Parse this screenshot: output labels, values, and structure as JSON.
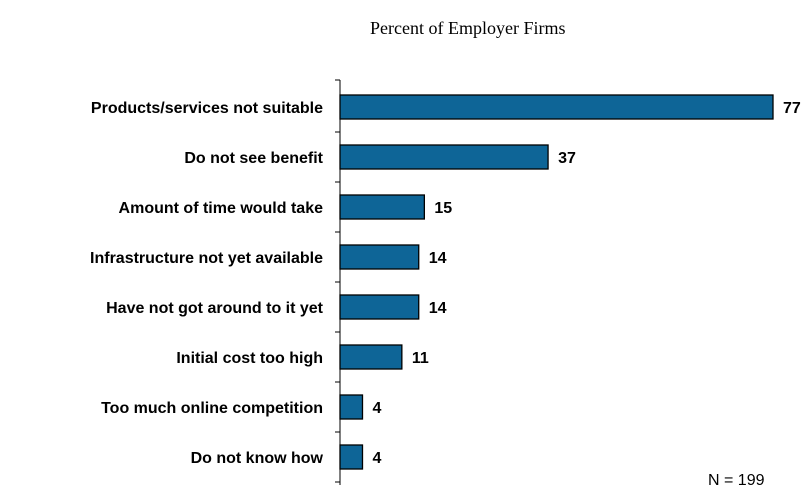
{
  "chart_data": {
    "type": "bar",
    "orientation": "horizontal",
    "title": "Percent of Employer Firms",
    "categories": [
      "Products/services not suitable",
      "Do not see benefit",
      "Amount of time would take",
      "Infrastructure not yet available",
      "Have not got around to it yet",
      "Initial cost too high",
      "Too much online competition",
      "Do not know how"
    ],
    "values": [
      77,
      37,
      15,
      14,
      14,
      11,
      4,
      4
    ],
    "value_labels": [
      "77",
      "37",
      "15",
      "14",
      "14",
      "11",
      "4",
      "4"
    ],
    "xlim": [
      0,
      77
    ],
    "grid": false,
    "note": "N = 199",
    "colors": {
      "bar_fill": "#0e6597",
      "bar_stroke": "#000000",
      "axis": "#000000"
    }
  }
}
